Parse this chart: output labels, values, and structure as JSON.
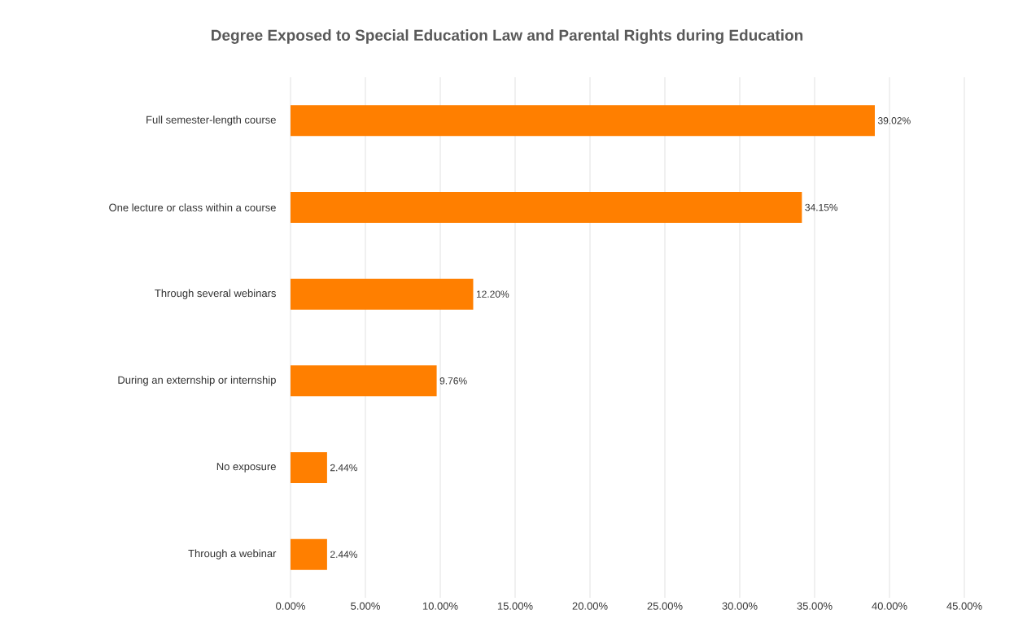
{
  "chart_data": {
    "type": "bar",
    "orientation": "horizontal",
    "title": "Degree Exposed to Special Education Law and Parental Rights during Education",
    "categories": [
      "Full semester-length course",
      "One lecture or class within a course",
      "Through several webinars",
      "During an externship or internship",
      "No exposure",
      "Through a webinar"
    ],
    "values": [
      39.02,
      34.15,
      12.2,
      9.76,
      2.44,
      2.44
    ],
    "value_labels": [
      "39.02%",
      "34.15%",
      "12.20%",
      "9.76%",
      "2.44%",
      "2.44%"
    ],
    "color": "#ff7f00",
    "xlim": [
      0,
      45
    ],
    "xticks": [
      {
        "value": 0,
        "label": "0.00%"
      },
      {
        "value": 5,
        "label": "5.00%"
      },
      {
        "value": 10,
        "label": "10.00%"
      },
      {
        "value": 15,
        "label": "15.00%"
      },
      {
        "value": 20,
        "label": "20.00%"
      },
      {
        "value": 25,
        "label": "25.00%"
      },
      {
        "value": 30,
        "label": "30.00%"
      },
      {
        "value": 35,
        "label": "35.00%"
      },
      {
        "value": 40,
        "label": "40.00%"
      },
      {
        "value": 45,
        "label": "45.00%"
      }
    ],
    "grid": "x"
  }
}
